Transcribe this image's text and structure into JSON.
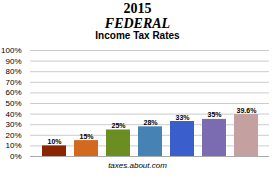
{
  "chart_data": {
    "type": "bar",
    "title": [
      "2015",
      "FEDERAL",
      "Income Tax Rates"
    ],
    "annotations": [
      "taxes.about.com"
    ],
    "categories": [
      null,
      null,
      null,
      null,
      null,
      null,
      null
    ],
    "values": [
      10,
      15,
      25,
      28,
      33,
      35,
      39.6
    ],
    "value_labels": [
      "10%",
      "15%",
      "25%",
      "28%",
      "33%",
      "35%",
      "39.6%"
    ],
    "colors": [
      "#8B2500",
      "#D2691E",
      "#6B8E23",
      "#4682B4",
      "#3A5FCD",
      "#7B6BB0",
      "#C4A0A0"
    ],
    "ylim": [
      0,
      100
    ],
    "yticks": [
      {
        "value": 0,
        "label": "0%"
      },
      {
        "value": 10,
        "label": "10%"
      },
      {
        "value": 20,
        "label": "20%"
      },
      {
        "value": 30,
        "label": "30%"
      },
      {
        "value": 40,
        "label": "40%"
      },
      {
        "value": 50,
        "label": "50%"
      },
      {
        "value": 60,
        "label": "60%"
      },
      {
        "value": 70,
        "label": "70%"
      },
      {
        "value": 80,
        "label": "80%"
      },
      {
        "value": 90,
        "label": "90%"
      },
      {
        "value": 100,
        "label": "100%"
      }
    ],
    "grid": true,
    "data_labels": true,
    "tick_labels": "y"
  }
}
